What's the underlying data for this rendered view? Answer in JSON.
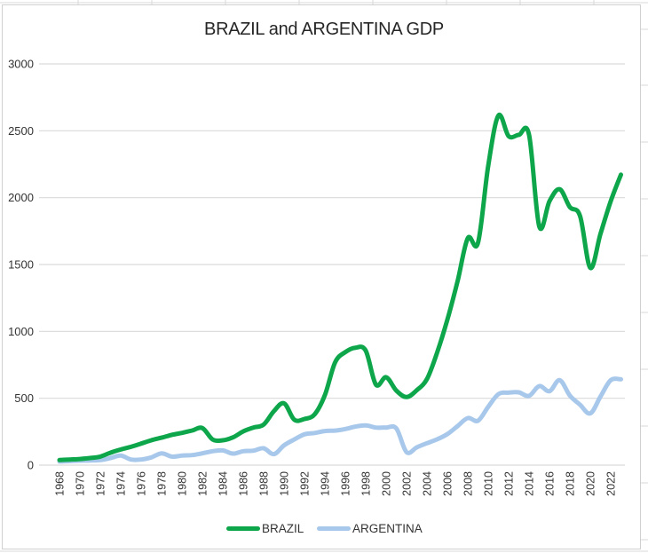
{
  "chart_data": {
    "type": "line",
    "title": "BRAZIL and ARGENTINA GDP",
    "xlabel": "",
    "ylabel": "",
    "ylim": [
      0,
      3000
    ],
    "yticks": [
      0,
      500,
      1000,
      1500,
      2000,
      2500,
      3000
    ],
    "grid": true,
    "legend_position": "bottom",
    "x": [
      1968,
      1969,
      1970,
      1971,
      1972,
      1973,
      1974,
      1975,
      1976,
      1977,
      1978,
      1979,
      1980,
      1981,
      1982,
      1983,
      1984,
      1985,
      1986,
      1987,
      1988,
      1989,
      1990,
      1991,
      1992,
      1993,
      1994,
      1995,
      1996,
      1997,
      1998,
      1999,
      2000,
      2001,
      2002,
      2003,
      2004,
      2005,
      2006,
      2007,
      2008,
      2009,
      2010,
      2011,
      2012,
      2013,
      2014,
      2015,
      2016,
      2017,
      2018,
      2019,
      2020,
      2021,
      2022,
      2023
    ],
    "xtick_labels": [
      "1968",
      "1970",
      "1972",
      "1974",
      "1976",
      "1978",
      "1980",
      "1982",
      "1984",
      "1986",
      "1988",
      "1990",
      "1992",
      "1994",
      "1996",
      "1998",
      "2000",
      "2002",
      "2004",
      "2006",
      "2008",
      "2010",
      "2012",
      "2014",
      "2016",
      "2018",
      "2020",
      "2022"
    ],
    "series": [
      {
        "name": "BRAZIL",
        "color": "#0DA64B",
        "values": [
          38,
          42,
          46,
          53,
          64,
          93,
          117,
          137,
          161,
          186,
          205,
          226,
          241,
          259,
          277,
          192,
          186,
          208,
          252,
          281,
          303,
          403,
          462,
          340,
          345,
          380,
          524,
          768,
          845,
          878,
          856,
          602,
          657,
          557,
          509,
          560,
          644,
          843,
          1088,
          1376,
          1697,
          1663,
          2238,
          2614,
          2460,
          2470,
          2470,
          1785,
          1973,
          2063,
          1929,
          1862,
          1475,
          1730,
          1973,
          2172
        ]
      },
      {
        "name": "ARGENTINA",
        "color": "#A8C8EB",
        "values": [
          27,
          30,
          33,
          35,
          38,
          53,
          71,
          42,
          42,
          58,
          88,
          64,
          71,
          75,
          88,
          104,
          110,
          86,
          104,
          108,
          126,
          82,
          148,
          192,
          230,
          240,
          255,
          258,
          270,
          288,
          297,
          281,
          281,
          274,
          97,
          133,
          164,
          193,
          232,
          292,
          352,
          332,
          436,
          531,
          542,
          544,
          518,
          591,
          553,
          635,
          520,
          451,
          387,
          513,
          635,
          642
        ]
      }
    ]
  }
}
